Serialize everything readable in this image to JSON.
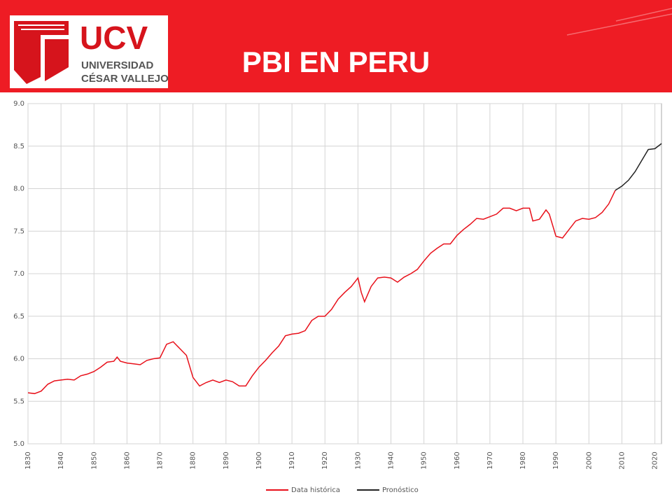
{
  "logo": {
    "name": "UCV",
    "line1": "UNIVERSIDAD",
    "line2": "CÉSAR VALLEJO"
  },
  "chart_data": {
    "type": "line",
    "title": "PBI EN PERU",
    "x": [
      1830,
      1832,
      1834,
      1836,
      1838,
      1840,
      1842,
      1844,
      1846,
      1848,
      1850,
      1852,
      1854,
      1856,
      1857,
      1858,
      1860,
      1862,
      1864,
      1866,
      1868,
      1870,
      1872,
      1874,
      1876,
      1878,
      1880,
      1882,
      1884,
      1886,
      1888,
      1890,
      1892,
      1894,
      1896,
      1898,
      1900,
      1902,
      1904,
      1906,
      1908,
      1910,
      1912,
      1914,
      1916,
      1918,
      1920,
      1922,
      1924,
      1926,
      1928,
      1930,
      1931,
      1932,
      1934,
      1936,
      1938,
      1940,
      1942,
      1944,
      1946,
      1948,
      1950,
      1952,
      1954,
      1956,
      1958,
      1960,
      1962,
      1964,
      1966,
      1968,
      1970,
      1972,
      1974,
      1976,
      1978,
      1980,
      1982,
      1983,
      1985,
      1987,
      1988,
      1990,
      1992,
      1994,
      1996,
      1998,
      2000,
      2002,
      2004,
      2006,
      2008,
      2010,
      2012,
      2014,
      2016,
      2018,
      2020,
      2022
    ],
    "series": [
      {
        "name": "Data histórica",
        "color": "#e8101a",
        "values": [
          5.6,
          5.59,
          5.62,
          5.7,
          5.74,
          5.75,
          5.76,
          5.75,
          5.8,
          5.82,
          5.85,
          5.9,
          5.96,
          5.97,
          6.02,
          5.97,
          5.95,
          5.94,
          5.93,
          5.98,
          6.0,
          6.01,
          6.17,
          6.2,
          6.12,
          6.04,
          5.78,
          5.68,
          5.72,
          5.75,
          5.72,
          5.75,
          5.73,
          5.68,
          5.68,
          5.8,
          5.9,
          5.98,
          6.07,
          6.15,
          6.27,
          6.29,
          6.3,
          6.33,
          6.45,
          6.5,
          6.5,
          6.58,
          6.7,
          6.78,
          6.85,
          6.95,
          6.78,
          6.67,
          6.85,
          6.95,
          6.96,
          6.95,
          6.9,
          6.96,
          7.0,
          7.05,
          7.15,
          7.24,
          7.3,
          7.35,
          7.35,
          7.45,
          7.52,
          7.58,
          7.65,
          7.64,
          7.67,
          7.7,
          7.77,
          7.77,
          7.74,
          7.77,
          7.77,
          7.62,
          7.64,
          7.75,
          7.7,
          7.44,
          7.42,
          7.52,
          7.62,
          7.65,
          7.64,
          7.66,
          7.72,
          7.82,
          7.98,
          null,
          null,
          null,
          null,
          null,
          null,
          null
        ]
      },
      {
        "name": "Pronóstico",
        "color": "#222222",
        "values": [
          null,
          null,
          null,
          null,
          null,
          null,
          null,
          null,
          null,
          null,
          null,
          null,
          null,
          null,
          null,
          null,
          null,
          null,
          null,
          null,
          null,
          null,
          null,
          null,
          null,
          null,
          null,
          null,
          null,
          null,
          null,
          null,
          null,
          null,
          null,
          null,
          null,
          null,
          null,
          null,
          null,
          null,
          null,
          null,
          null,
          null,
          null,
          null,
          null,
          null,
          null,
          null,
          null,
          null,
          null,
          null,
          null,
          null,
          null,
          null,
          null,
          null,
          null,
          null,
          null,
          null,
          null,
          null,
          null,
          null,
          null,
          null,
          null,
          null,
          null,
          null,
          null,
          null,
          null,
          null,
          null,
          null,
          null,
          null,
          null,
          null,
          null,
          null,
          null,
          null,
          null,
          null,
          7.98,
          8.03,
          8.1,
          8.2,
          8.33,
          8.46,
          8.47,
          8.53
        ]
      }
    ],
    "xlim": [
      1830,
      2022
    ],
    "xticks": [
      1830,
      1840,
      1850,
      1860,
      1870,
      1880,
      1890,
      1900,
      1910,
      1920,
      1930,
      1940,
      1950,
      1960,
      1970,
      1980,
      1990,
      2000,
      2010,
      2020
    ],
    "ylim": [
      5,
      9
    ],
    "yticks": [
      {
        "value": 5,
        "label": "5.0"
      },
      {
        "value": 5.5,
        "label": "5.5"
      },
      {
        "value": 6,
        "label": "6.0"
      },
      {
        "value": 6.5,
        "label": "6.5"
      },
      {
        "value": 7,
        "label": "7.0"
      },
      {
        "value": 7.5,
        "label": "7.5"
      },
      {
        "value": 8,
        "label": "8.0"
      },
      {
        "value": 8.5,
        "label": "8.5"
      },
      {
        "value": 9,
        "label": "9.0"
      }
    ],
    "grid": true,
    "legend": "bottom"
  }
}
